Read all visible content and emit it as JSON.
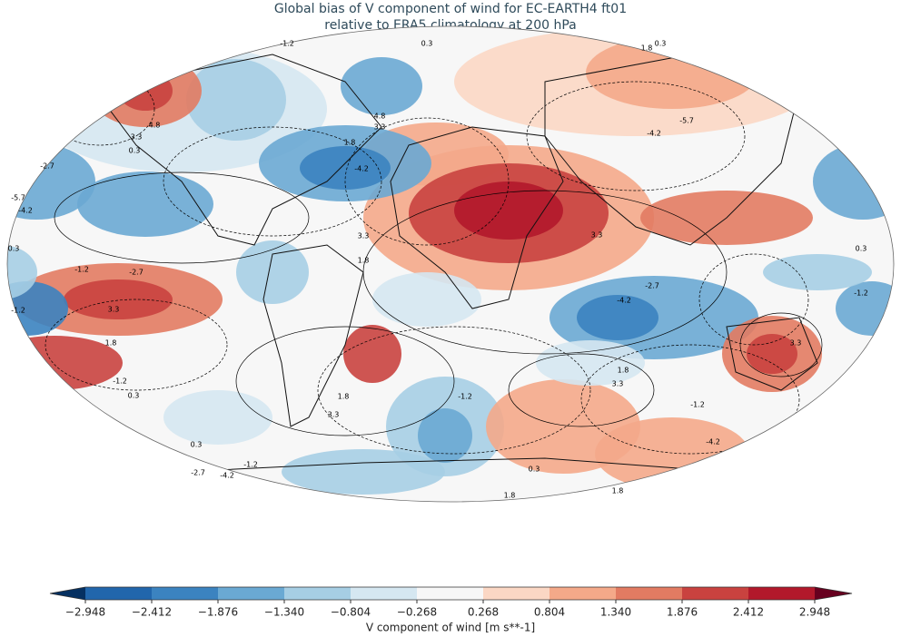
{
  "title": [
    "Global bias of V component of wind for EC-EARTH4 ft01",
    "relative to ERA5 climatology at 200 hPa"
  ],
  "colorbar": {
    "label": "V component of wind [m s**-1]",
    "levels": [
      {
        "value": -2.948,
        "label": "−2.948"
      },
      {
        "value": -2.412,
        "label": "−2.412"
      },
      {
        "value": -1.876,
        "label": "−1.876"
      },
      {
        "value": -1.34,
        "label": "−1.340"
      },
      {
        "value": -0.804,
        "label": "−0.804"
      },
      {
        "value": -0.268,
        "label": "−0.268"
      },
      {
        "value": 0.268,
        "label": "0.268"
      },
      {
        "value": 0.804,
        "label": "0.804"
      },
      {
        "value": 1.34,
        "label": "1.340"
      },
      {
        "value": 1.876,
        "label": "1.876"
      },
      {
        "value": 2.412,
        "label": "2.412"
      },
      {
        "value": 2.948,
        "label": "2.948"
      }
    ],
    "colors": [
      "#2166ac",
      "#3b83c0",
      "#6aa9d3",
      "#a6cee4",
      "#d5e7f1",
      "#f7f7f7",
      "#fbd7c4",
      "#f4a989",
      "#e27b62",
      "#c9423f",
      "#b2182b"
    ],
    "under": "#053061",
    "over": "#67001f"
  },
  "contour_labels": [
    -1.2,
    0.3,
    1.8,
    0.3,
    4.8,
    3.3,
    1.8,
    -4.2,
    -5.7,
    -4.2,
    3.3,
    4.8,
    0.3,
    -2.7,
    -5.7,
    -4.2,
    3.3,
    1.8,
    3.3,
    0.3,
    0.3,
    -1.2,
    -2.7,
    -4.2,
    -2.7,
    3.3,
    1.8,
    1.8,
    3.3,
    3.3,
    -1.2,
    -1.2,
    -4.2,
    0.3,
    0.3,
    1.8,
    -2.7,
    -1.2,
    1.8,
    3.3,
    1.8,
    -1.2,
    -1.2,
    0.3,
    -1.2,
    -4.2
  ]
}
